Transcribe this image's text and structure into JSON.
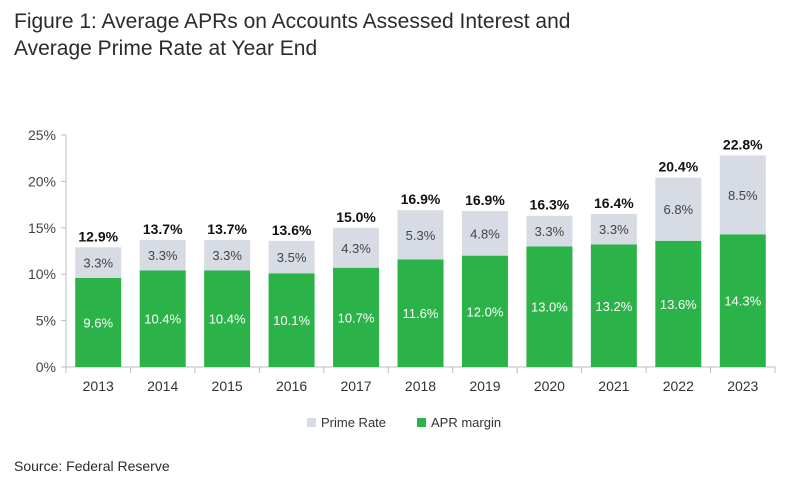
{
  "title_line1": "Figure 1: Average APRs on Accounts Assessed Interest and",
  "title_line2": "Average Prime Rate at Year End",
  "source": "Source: Federal Reserve",
  "colors": {
    "prime": "#d6dbe4",
    "margin": "#2bb34a"
  },
  "chart_data": {
    "type": "bar",
    "stacked": true,
    "categories": [
      "2013",
      "2014",
      "2015",
      "2016",
      "2017",
      "2018",
      "2019",
      "2020",
      "2021",
      "2022",
      "2023"
    ],
    "series": [
      {
        "name": "APR margin",
        "values": [
          9.6,
          10.4,
          10.4,
          10.1,
          10.7,
          11.6,
          12.0,
          13.0,
          13.2,
          13.6,
          14.3
        ],
        "labels": [
          "9.6%",
          "10.4%",
          "10.4%",
          "10.1%",
          "10.7%",
          "11.6%",
          "12.0%",
          "13.0%",
          "13.2%",
          "13.6%",
          "14.3%"
        ]
      },
      {
        "name": "Prime Rate",
        "values": [
          3.3,
          3.3,
          3.3,
          3.5,
          4.3,
          5.3,
          4.8,
          3.3,
          3.3,
          6.8,
          8.5
        ],
        "labels": [
          "3.3%",
          "3.3%",
          "3.3%",
          "3.5%",
          "4.3%",
          "5.3%",
          "4.8%",
          "3.3%",
          "3.3%",
          "6.8%",
          "8.5%"
        ]
      }
    ],
    "totals": [
      12.9,
      13.7,
      13.7,
      13.6,
      15.0,
      16.9,
      16.9,
      16.3,
      16.4,
      20.4,
      22.8
    ],
    "total_labels": [
      "12.9%",
      "13.7%",
      "13.7%",
      "13.6%",
      "15.0%",
      "16.9%",
      "16.9%",
      "16.3%",
      "16.4%",
      "20.4%",
      "22.8%"
    ],
    "ylim": [
      0,
      25
    ],
    "yticks": [
      0,
      5,
      10,
      15,
      20,
      25
    ],
    "ytick_labels": [
      "0%",
      "5%",
      "10%",
      "15%",
      "20%",
      "25%"
    ],
    "legend": {
      "position": "bottom",
      "entries": [
        "Prime Rate",
        "APR margin"
      ]
    },
    "grid": false
  }
}
